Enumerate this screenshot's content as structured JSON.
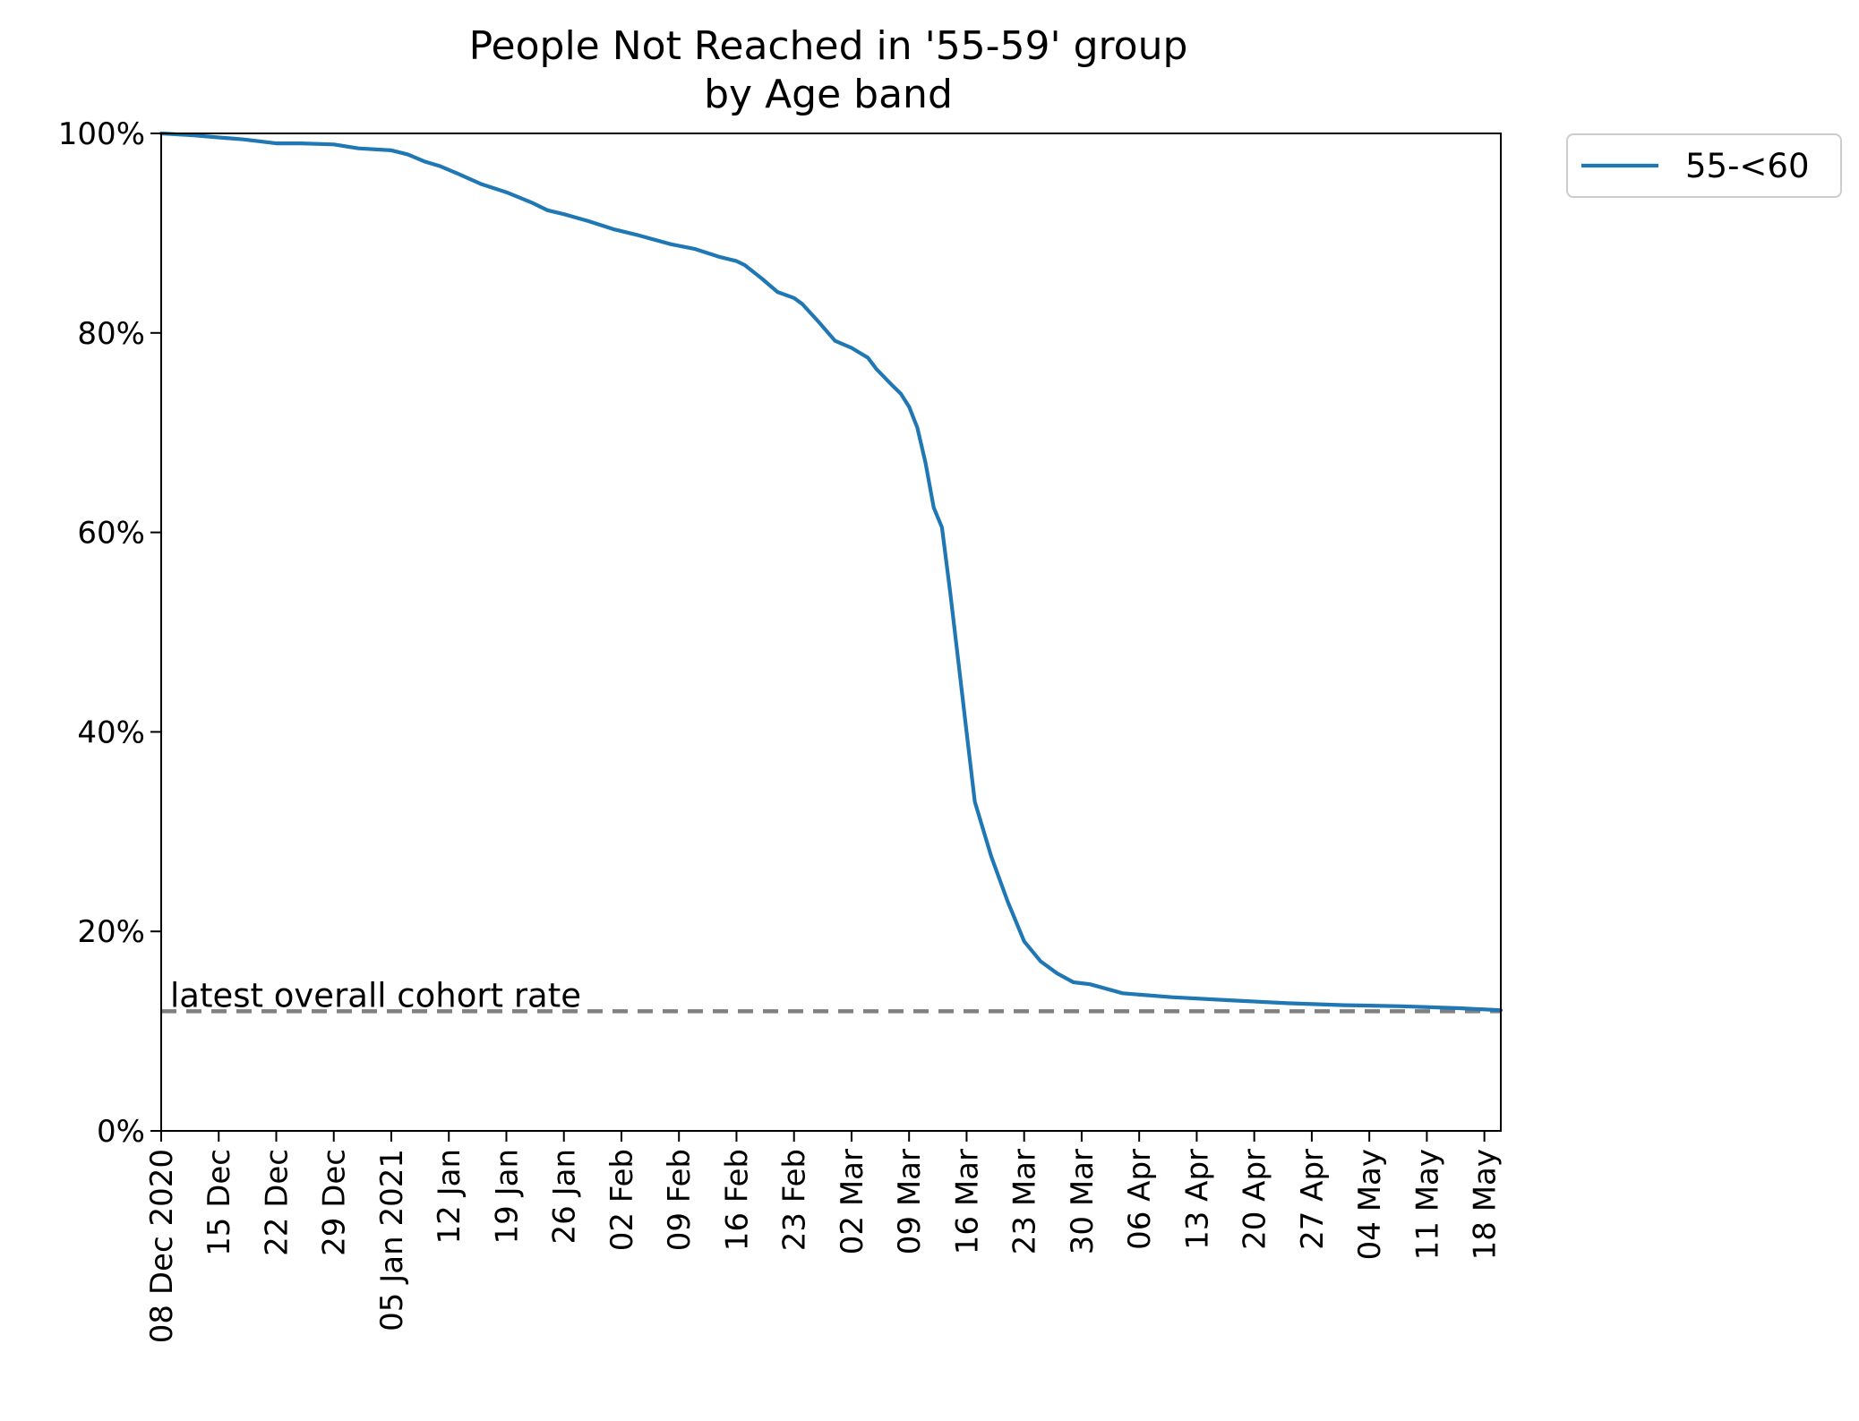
{
  "chart_data": {
    "type": "line",
    "title": "People Not Reached in '55-59' group",
    "subtitle": "by Age band",
    "xlabel": "",
    "ylabel": "",
    "x_tick_labels": [
      "08 Dec 2020",
      "15 Dec",
      "22 Dec",
      "29 Dec",
      "05 Jan 2021",
      "12 Jan",
      "19 Jan",
      "26 Jan",
      "02 Feb",
      "09 Feb",
      "16 Feb",
      "23 Feb",
      "02 Mar",
      "09 Mar",
      "16 Mar",
      "23 Mar",
      "30 Mar",
      "06 Apr",
      "13 Apr",
      "20 Apr",
      "27 Apr",
      "04 May",
      "11 May",
      "18 May"
    ],
    "y_tick_labels": [
      "0%",
      "20%",
      "40%",
      "60%",
      "80%",
      "100%"
    ],
    "y_ticks": [
      0,
      20,
      40,
      60,
      80,
      100
    ],
    "ylim": [
      0,
      100
    ],
    "xlim": [
      "2020-12-08",
      "2021-05-20"
    ],
    "grid": false,
    "legend_position": "outside-top-right",
    "reference_line": {
      "label": "latest overall cohort rate",
      "y": 12,
      "style": "dashed",
      "color": "#808080"
    },
    "series": [
      {
        "name": "55-<60",
        "color": "#1f77b4",
        "points": [
          [
            "2020-12-08",
            100.0
          ],
          [
            "2020-12-12",
            99.8
          ],
          [
            "2020-12-15",
            99.6
          ],
          [
            "2020-12-18",
            99.4
          ],
          [
            "2020-12-22",
            99.0
          ],
          [
            "2020-12-25",
            99.0
          ],
          [
            "2020-12-29",
            98.9
          ],
          [
            "2021-01-01",
            98.5
          ],
          [
            "2021-01-05",
            98.3
          ],
          [
            "2021-01-07",
            97.9
          ],
          [
            "2021-01-09",
            97.2
          ],
          [
            "2021-01-11",
            96.7
          ],
          [
            "2021-01-13",
            96.0
          ],
          [
            "2021-01-16",
            94.9
          ],
          [
            "2021-01-19",
            94.1
          ],
          [
            "2021-01-22",
            93.1
          ],
          [
            "2021-01-24",
            92.3
          ],
          [
            "2021-01-26",
            91.9
          ],
          [
            "2021-01-29",
            91.2
          ],
          [
            "2021-02-01",
            90.4
          ],
          [
            "2021-02-04",
            89.8
          ],
          [
            "2021-02-08",
            88.9
          ],
          [
            "2021-02-11",
            88.4
          ],
          [
            "2021-02-14",
            87.6
          ],
          [
            "2021-02-16",
            87.2
          ],
          [
            "2021-02-17",
            86.8
          ],
          [
            "2021-02-19",
            85.5
          ],
          [
            "2021-02-21",
            84.1
          ],
          [
            "2021-02-23",
            83.5
          ],
          [
            "2021-02-24",
            82.9
          ],
          [
            "2021-02-26",
            81.1
          ],
          [
            "2021-02-28",
            79.2
          ],
          [
            "2021-03-02",
            78.5
          ],
          [
            "2021-03-04",
            77.5
          ],
          [
            "2021-03-05",
            76.4
          ],
          [
            "2021-03-07",
            74.7
          ],
          [
            "2021-03-08",
            73.9
          ],
          [
            "2021-03-09",
            72.6
          ],
          [
            "2021-03-10",
            70.5
          ],
          [
            "2021-03-11",
            67.0
          ],
          [
            "2021-03-12",
            62.5
          ],
          [
            "2021-03-13",
            60.5
          ],
          [
            "2021-03-14",
            54.0
          ],
          [
            "2021-03-15",
            47.0
          ],
          [
            "2021-03-16",
            40.0
          ],
          [
            "2021-03-17",
            33.0
          ],
          [
            "2021-03-19",
            27.5
          ],
          [
            "2021-03-21",
            23.0
          ],
          [
            "2021-03-23",
            19.0
          ],
          [
            "2021-03-25",
            17.0
          ],
          [
            "2021-03-27",
            15.8
          ],
          [
            "2021-03-29",
            14.9
          ],
          [
            "2021-03-31",
            14.7
          ],
          [
            "2021-04-04",
            13.8
          ],
          [
            "2021-04-10",
            13.4
          ],
          [
            "2021-04-17",
            13.1
          ],
          [
            "2021-04-24",
            12.8
          ],
          [
            "2021-05-01",
            12.6
          ],
          [
            "2021-05-08",
            12.5
          ],
          [
            "2021-05-15",
            12.3
          ],
          [
            "2021-05-20",
            12.1
          ]
        ]
      }
    ]
  }
}
